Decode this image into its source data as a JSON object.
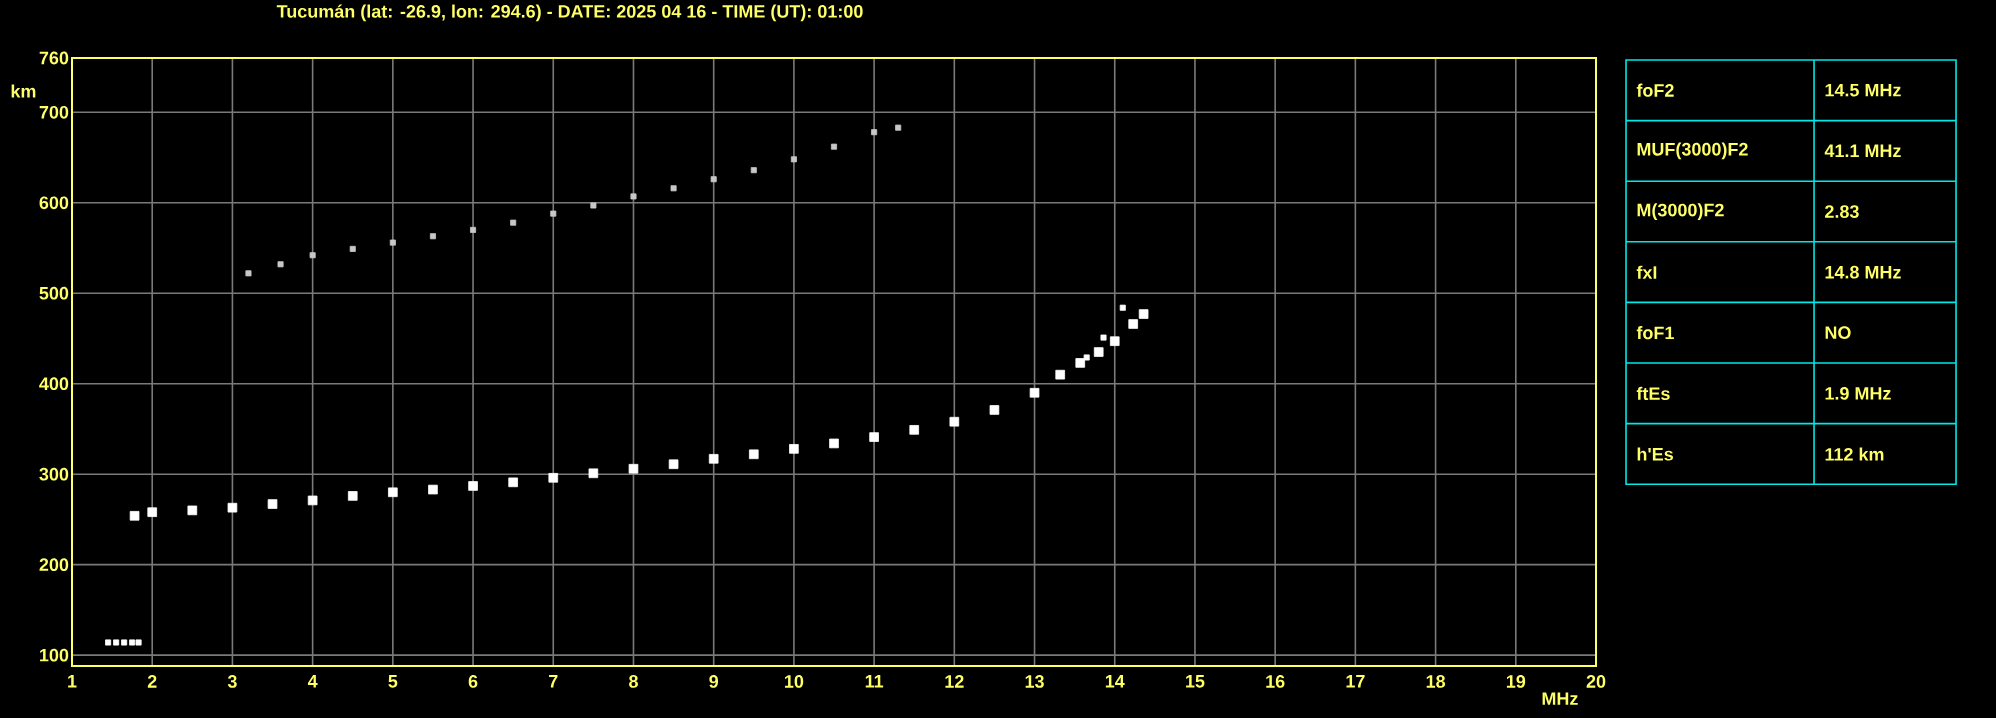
{
  "chart_data": {
    "type": "scatter",
    "title": "Tucumán (lat: -26.9, lon: 294.6) - DATE: 2025 04 16 - TIME (UT): 01:00",
    "xlabel": "MHz",
    "ylabel": "km",
    "xlim": [
      1,
      20
    ],
    "ylim": [
      88,
      760
    ],
    "xticks": [
      1,
      2,
      3,
      4,
      5,
      6,
      7,
      8,
      9,
      10,
      11,
      12,
      13,
      14,
      15,
      16,
      17,
      18,
      19,
      20
    ],
    "yticks": [
      100,
      200,
      300,
      400,
      500,
      600,
      700,
      760
    ],
    "grid": true,
    "marker": "square",
    "series": [
      {
        "color": "#ffffff",
        "x": [
          1.78,
          2.0,
          2.5,
          3.0,
          3.5,
          4.0,
          4.5,
          5.0,
          5.5,
          6.0,
          6.5,
          7.0,
          7.5,
          8.0,
          8.5,
          9.0,
          9.5,
          10.0,
          10.5,
          11.0,
          11.5,
          12.0,
          12.5,
          13.0,
          13.32,
          13.57,
          13.8,
          14.0,
          14.23,
          14.36
        ],
        "values": [
          254,
          258,
          260,
          263,
          267,
          271,
          276,
          280,
          283,
          287,
          291,
          296,
          301,
          306,
          311,
          317,
          322,
          328,
          334,
          341,
          349,
          358,
          371,
          390,
          410,
          423,
          435,
          447,
          466,
          477
        ]
      },
      {
        "color": "#ffffff",
        "x": [
          13.65,
          13.86,
          14.1
        ],
        "values": [
          429,
          451,
          484
        ]
      },
      {
        "color": "#c8c8c8",
        "x": [
          3.2,
          3.6,
          4.0,
          4.5,
          5.0,
          5.5,
          6.0,
          6.5,
          7.0,
          7.5,
          8.0,
          8.5,
          9.0,
          9.5,
          10.0,
          10.5,
          11.0,
          11.3
        ],
        "values": [
          522,
          532,
          542,
          549,
          556,
          563,
          570,
          578,
          588,
          597,
          607,
          616,
          626,
          636,
          648,
          662,
          678,
          683
        ]
      },
      {
        "color": "#ffffff",
        "x": [
          1.45,
          1.55,
          1.65,
          1.75,
          1.83
        ],
        "values": [
          114,
          114,
          114,
          114,
          114
        ]
      }
    ],
    "annotations": [
      "foF2",
      "14.5 MHz",
      "MUF(3000)F2",
      "41.1 MHz",
      "M(3000)F2",
      "2.83",
      "fxI",
      "14.8 MHz",
      "foF1",
      "NO",
      "ftEs",
      "1.9 MHz",
      "h'Es",
      "112 km"
    ]
  }
}
